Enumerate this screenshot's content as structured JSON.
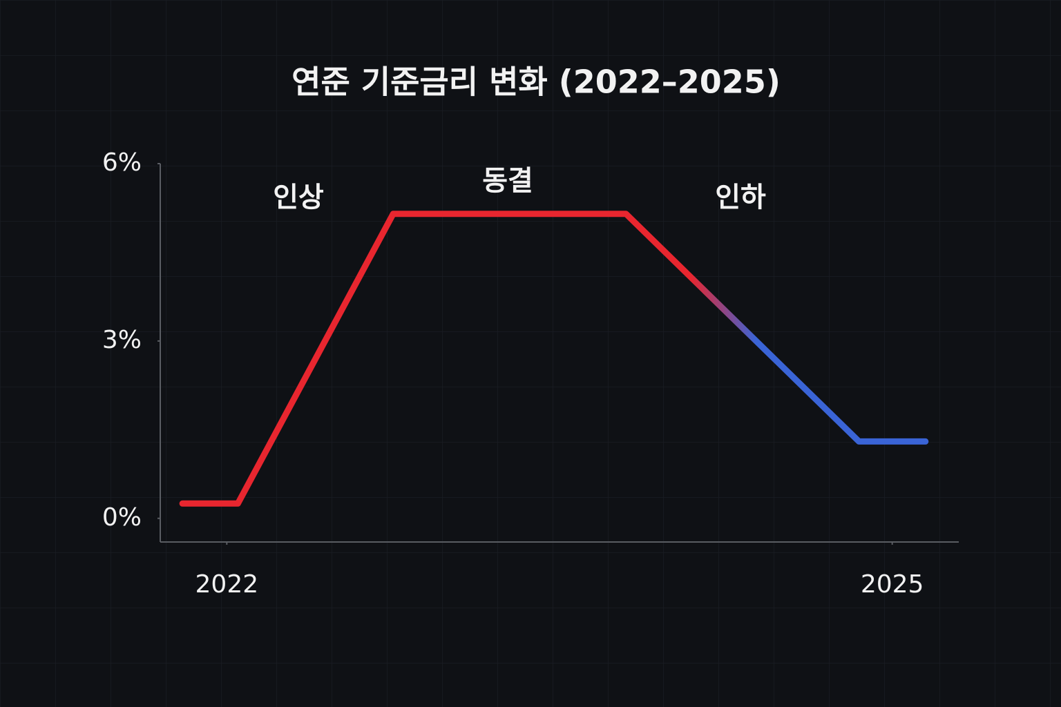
{
  "chart_data": {
    "type": "line",
    "title": "연준 기준금리 변화 (2022–2025)",
    "x": [
      2021.8,
      2022.05,
      2022.75,
      2023.8,
      2024.85,
      2025.15
    ],
    "series": [
      {
        "values": [
          0.25,
          0.25,
          5.15,
          5.15,
          1.3,
          1.3
        ],
        "color": "#e8262f",
        "gradient_color": "#3a64d6"
      }
    ],
    "xlim": [
      2021.7,
      2025.3
    ],
    "xticks": [
      2022,
      2025
    ],
    "ylim": [
      -0.4,
      6
    ],
    "yticks": [
      {
        "value": 0,
        "label": "0%"
      },
      {
        "value": 3,
        "label": "3%"
      },
      {
        "value": 6,
        "label": "6%"
      }
    ],
    "annotations": [
      "인상",
      "동결",
      "인하"
    ]
  }
}
